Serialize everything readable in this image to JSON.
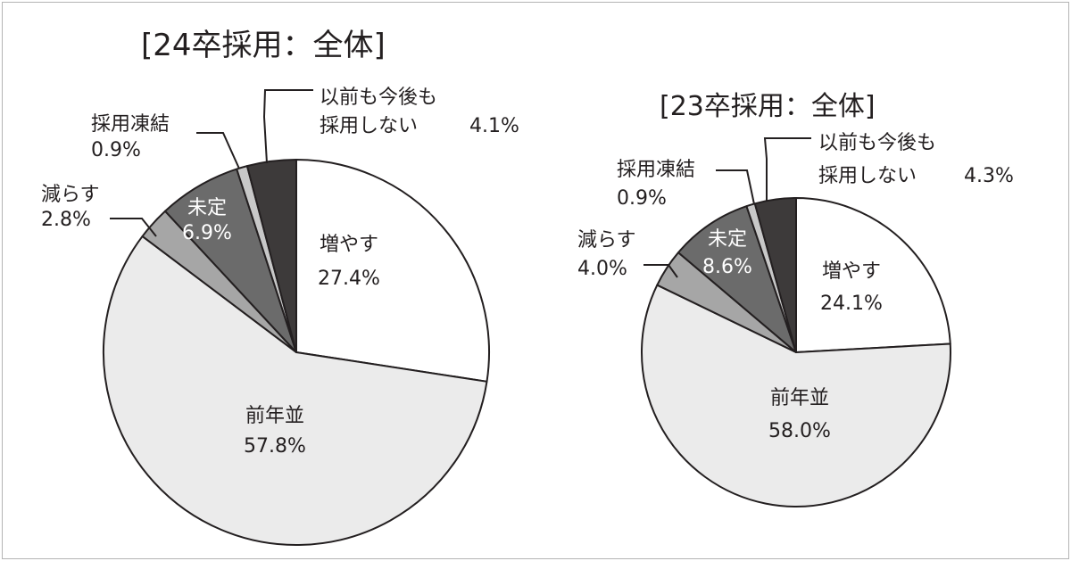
{
  "chart_data": [
    {
      "type": "pie",
      "title": "[24卒採用：全体]",
      "start": "12 o'clock",
      "direction": "clockwise",
      "slices": [
        {
          "label": "増やす",
          "value": 27.4,
          "value_text": "27.4%",
          "color": "#ffffff"
        },
        {
          "label": "前年並",
          "value": 57.8,
          "value_text": "57.8%",
          "color": "#ebebeb"
        },
        {
          "label": "減らす",
          "value": 2.8,
          "value_text": "2.8%",
          "color": "#a6a6a6"
        },
        {
          "label": "未定",
          "value": 6.9,
          "value_text": "6.9%",
          "color": "#6b6b6b"
        },
        {
          "label": "採用凍結",
          "value": 0.9,
          "value_text": "0.9%",
          "color": "#c8c8c8"
        },
        {
          "label_lines": [
            "以前も今後も",
            "採用しない"
          ],
          "value": 4.1,
          "value_text": "4.1%",
          "color": "#3d3a3a"
        }
      ]
    },
    {
      "type": "pie",
      "title": "[23卒採用：全体]",
      "start": "12 o'clock",
      "direction": "clockwise",
      "slices": [
        {
          "label": "増やす",
          "value": 24.1,
          "value_text": "24.1%",
          "color": "#ffffff"
        },
        {
          "label": "前年並",
          "value": 58.0,
          "value_text": "58.0%",
          "color": "#ebebeb"
        },
        {
          "label": "減らす",
          "value": 4.0,
          "value_text": "4.0%",
          "color": "#a6a6a6"
        },
        {
          "label": "未定",
          "value": 8.6,
          "value_text": "8.6%",
          "color": "#6b6b6b"
        },
        {
          "label": "採用凍結",
          "value": 0.9,
          "value_text": "0.9%",
          "color": "#c8c8c8"
        },
        {
          "label_lines": [
            "以前も今後も",
            "採用しない"
          ],
          "value": 4.3,
          "value_text": "4.3%",
          "color": "#3d3a3a"
        }
      ]
    }
  ]
}
